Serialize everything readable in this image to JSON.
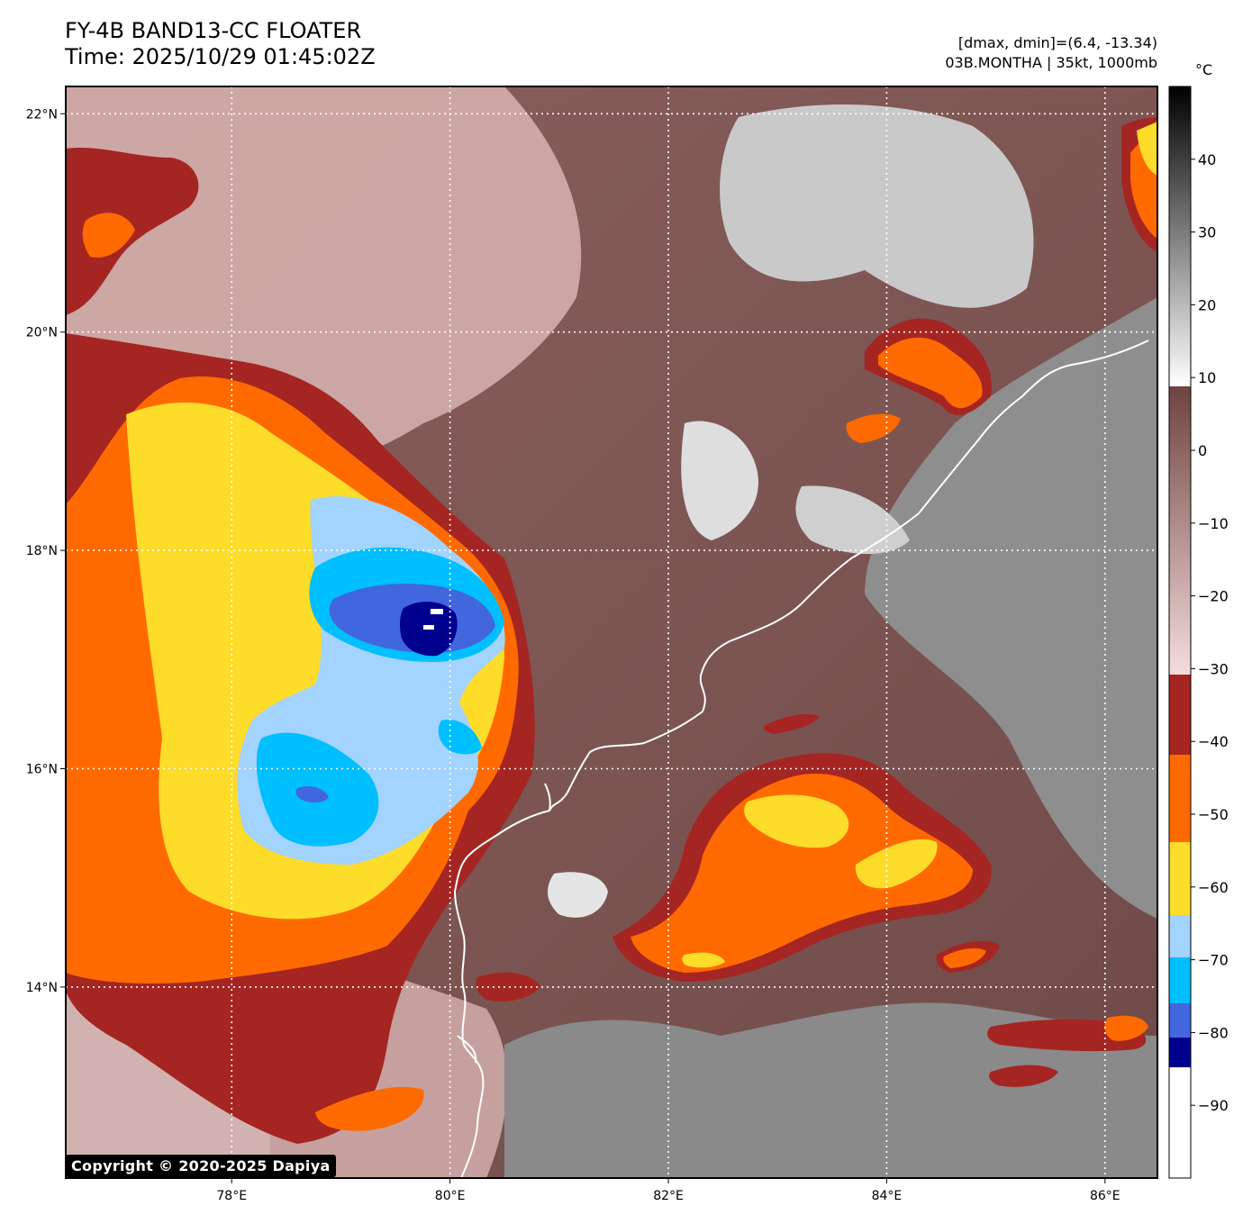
{
  "header": {
    "title_line1": "FY-4B BAND13-CC FLOATER",
    "title_line2": "Time: 2025/10/29 01:45:02Z",
    "stats": "[dmax, dmin]=(6.4, -13.34)",
    "storm": "03B.MONTHA | 35kt, 1000mb"
  },
  "map": {
    "lon_ticks": [
      "78°E",
      "80°E",
      "82°E",
      "84°E",
      "86°E"
    ],
    "lat_ticks": [
      "22°N",
      "20°N",
      "18°N",
      "16°N",
      "14°N"
    ],
    "lon_values": [
      78,
      80,
      82,
      84,
      86
    ],
    "lat_values": [
      22,
      20,
      18,
      16,
      14
    ],
    "lon_range": [
      76.48,
      86.48
    ],
    "lat_range": [
      12.25,
      22.25
    ],
    "background": "brown-grey infrared cloud-top temperature field",
    "colors": {
      "warm_brown": "#7a5250",
      "pink": "#e8c8c8",
      "grey": "#8e8e8e",
      "dark_red": "#a52522",
      "orange": "#ff6a00",
      "yellow": "#fddc2a",
      "light_blue": "#a3d3ff",
      "cyan": "#00bfff",
      "royal_blue": "#4166de",
      "navy": "#00008f",
      "coast": "#ffffff"
    }
  },
  "colorbar": {
    "unit": "°C",
    "ticks": [
      "40",
      "30",
      "20",
      "10",
      "0",
      "−10",
      "−20",
      "−30",
      "−40",
      "−50",
      "−60",
      "−70",
      "−80",
      "−90"
    ],
    "tick_values": [
      40,
      30,
      20,
      10,
      0,
      -10,
      -20,
      -30,
      -40,
      -50,
      -60,
      -70,
      -80,
      -90
    ],
    "range": [
      -100,
      50
    ]
  },
  "footer": {
    "copyright": "Copyright © 2020-2025 Dapiya"
  }
}
